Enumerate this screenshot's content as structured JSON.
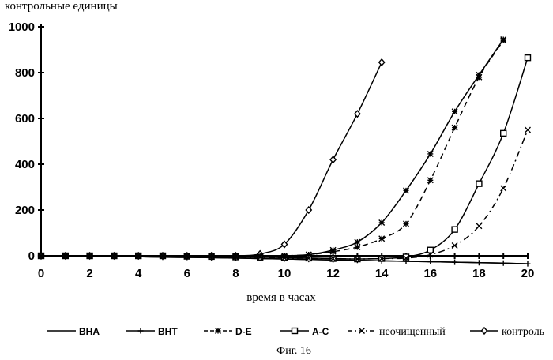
{
  "chart_data": {
    "type": "line",
    "title": "",
    "ylabel": "контрольные единицы",
    "xlabel": "время в часах",
    "caption": "Фиг. 16",
    "xlim": [
      0,
      20
    ],
    "ylim": [
      0,
      1000
    ],
    "x_ticks": [
      0,
      2,
      4,
      6,
      8,
      10,
      12,
      14,
      16,
      18,
      20
    ],
    "y_ticks": [
      0,
      200,
      400,
      600,
      800,
      1000
    ],
    "grid": false,
    "legend_position": "bottom",
    "series": [
      {
        "name": "BHA",
        "style": "solid",
        "marker": "none",
        "x": [
          0,
          1,
          2,
          3,
          4,
          5,
          6,
          7,
          8,
          9,
          10,
          11,
          12,
          13,
          14,
          15,
          16,
          17,
          18,
          19,
          20
        ],
        "y": [
          0,
          -1,
          -2,
          -3,
          -4,
          -6,
          -7,
          -8,
          -10,
          -12,
          -14,
          -16,
          -18,
          -20,
          -22,
          -24,
          -26,
          -28,
          -30,
          -32,
          -35
        ]
      },
      {
        "name": "BHT",
        "style": "solid",
        "marker": "plus",
        "x": [
          0,
          1,
          2,
          3,
          4,
          5,
          6,
          7,
          8,
          9,
          10,
          11,
          12,
          13,
          14,
          15,
          16,
          17,
          18,
          19,
          20
        ],
        "y": [
          0,
          -1,
          -2,
          -3,
          -4,
          -6,
          -7,
          -8,
          -10,
          -12,
          -14,
          -16,
          -18,
          -20,
          -22,
          -24,
          -26,
          -28,
          -30,
          -32,
          -35
        ]
      },
      {
        "name": "D-E",
        "style": "dashed",
        "marker": "asterisk",
        "x": [
          0,
          1,
          2,
          3,
          4,
          5,
          6,
          7,
          8,
          9,
          10,
          11,
          12,
          13,
          14,
          15,
          16,
          17,
          18,
          19
        ],
        "y": [
          0,
          0,
          0,
          0,
          0,
          0,
          0,
          0,
          0,
          0,
          0,
          5,
          18,
          38,
          75,
          140,
          330,
          560,
          780,
          940
        ]
      },
      {
        "name": "A-C",
        "style": "solid",
        "marker": "square",
        "x": [
          0,
          1,
          2,
          3,
          4,
          5,
          6,
          7,
          8,
          9,
          10,
          11,
          12,
          13,
          14,
          15,
          16,
          17,
          18,
          19,
          20
        ],
        "y": [
          0,
          0,
          0,
          0,
          0,
          0,
          -2,
          -3,
          -5,
          -6,
          -8,
          -10,
          -12,
          -14,
          -12,
          -5,
          25,
          115,
          315,
          535,
          865
        ]
      },
      {
        "name": "неочищенный",
        "style": "dashdot",
        "marker": "x",
        "x": [
          0,
          1,
          2,
          3,
          4,
          5,
          6,
          7,
          8,
          9,
          10,
          11,
          12,
          13,
          14,
          15,
          16,
          17,
          18,
          19,
          20
        ],
        "y": [
          0,
          0,
          0,
          0,
          0,
          0,
          -2,
          -3,
          -5,
          -7,
          -9,
          -11,
          -12,
          -14,
          -12,
          -10,
          5,
          45,
          130,
          295,
          550
        ]
      },
      {
        "name": "контроль",
        "style": "solid",
        "marker": "diamond",
        "x": [
          0,
          1,
          2,
          3,
          4,
          5,
          6,
          7,
          8,
          9,
          10,
          11,
          12,
          13,
          14
        ],
        "y": [
          0,
          0,
          0,
          0,
          0,
          0,
          0,
          0,
          0,
          8,
          50,
          200,
          420,
          620,
          845
        ]
      }
    ],
    "extra_curves": [
      {
        "of": "D-E",
        "style": "solid",
        "marker": "asterisk",
        "x": [
          0,
          1,
          2,
          3,
          4,
          5,
          6,
          7,
          8,
          9,
          10,
          11,
          12,
          13,
          14,
          15,
          16,
          17,
          18,
          19
        ],
        "y": [
          0,
          0,
          0,
          0,
          0,
          0,
          0,
          0,
          0,
          0,
          0,
          5,
          25,
          60,
          145,
          285,
          445,
          630,
          790,
          945
        ]
      }
    ]
  }
}
